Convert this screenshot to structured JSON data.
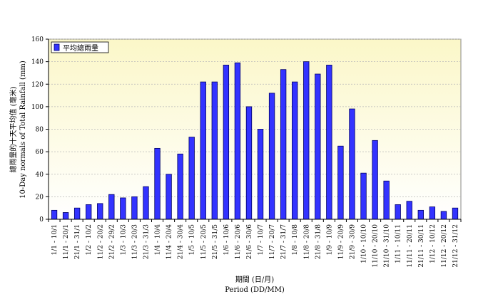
{
  "chart_data": {
    "type": "bar",
    "title": "",
    "ylabel_line1": "總雨量的十天平均值 (毫米)",
    "ylabel_line2": "10-Day normals of Total Rainfall (mm)",
    "xlabel_line1": "期間 (日/月)",
    "xlabel_line2": "Period (DD/MM)",
    "ylim": [
      0,
      160
    ],
    "yticks": [
      0,
      20,
      40,
      60,
      80,
      100,
      120,
      140,
      160
    ],
    "grid": true,
    "legend_position": "top-left",
    "series": [
      {
        "name": "平均總雨量",
        "color": "#3333ff",
        "values": [
          8,
          6,
          10,
          13,
          14,
          22,
          19,
          20,
          29,
          63,
          40,
          58,
          73,
          122,
          122,
          137,
          139,
          100,
          80,
          112,
          133,
          122,
          140,
          129,
          137,
          65,
          98,
          41,
          70,
          34,
          13,
          16,
          8,
          11,
          7,
          10
        ]
      }
    ],
    "categories": [
      "1/1 - 10/1",
      "11/1 - 20/1",
      "21/1 - 31/1",
      "1/2 - 10/2",
      "11/2 - 20/2",
      "21/2 - 29/2",
      "1/3 - 10/3",
      "11/3 - 20/3",
      "21/3 - 31/3",
      "1/4 - 10/4",
      "11/4 - 20/4",
      "21/4 - 30/4",
      "1/5 - 10/5",
      "11/5 - 20/5",
      "21/5 - 31/5",
      "1/6 - 10/6",
      "11/6 - 20/6",
      "21/6 - 30/6",
      "1/7 - 10/7",
      "11/7 - 20/7",
      "21/7 - 31/7",
      "1/8 - 10/8",
      "11/8 - 20/8",
      "21/8 - 31/8",
      "1/9 - 10/9",
      "11/9 - 20/9",
      "21/9 - 30/9",
      "1/10 - 10/10",
      "11/10 - 20/10",
      "21/10 - 31/10",
      "1/11 - 10/11",
      "11/11 - 20/11",
      "21/11 - 30/11",
      "1/12 - 10/12",
      "11/12 - 20/12",
      "21/12 - 31/12"
    ]
  },
  "colors": {
    "plot_top": "#fbf7c8",
    "plot_bottom": "#ffffff",
    "bar_fill": "#3333ff",
    "bar_stroke": "#000066",
    "grid": "#b8b8b8"
  }
}
